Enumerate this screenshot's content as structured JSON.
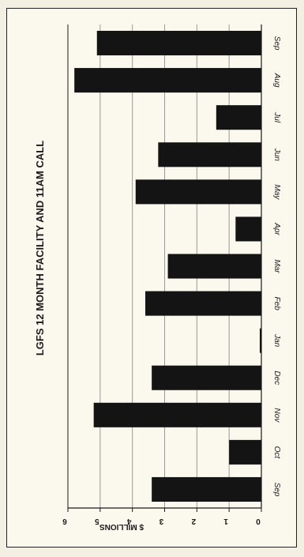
{
  "chart_data": {
    "type": "bar",
    "orientation": "horizontal",
    "title": "LGFS 12 MONTH FACILITY AND 11AM CALL",
    "xlabel": "$ MILLIONS",
    "ylabel": "",
    "xlim": [
      0,
      6
    ],
    "ticks": [
      0,
      1,
      2,
      3,
      4,
      5,
      6
    ],
    "grid": true,
    "categories": [
      "Sep",
      "Oct",
      "Nov",
      "Dec",
      "Jan",
      "Feb",
      "Mar",
      "Apr",
      "May",
      "Jun",
      "Jul",
      "Aug",
      "Sep"
    ],
    "values": [
      3.4,
      1.0,
      5.2,
      3.4,
      0.05,
      3.6,
      2.9,
      0.8,
      3.9,
      3.2,
      1.4,
      5.8,
      5.1
    ],
    "colors": {
      "bar": "#141414",
      "grid": "#9a9a9a",
      "axis": "#1a1a1a"
    }
  }
}
